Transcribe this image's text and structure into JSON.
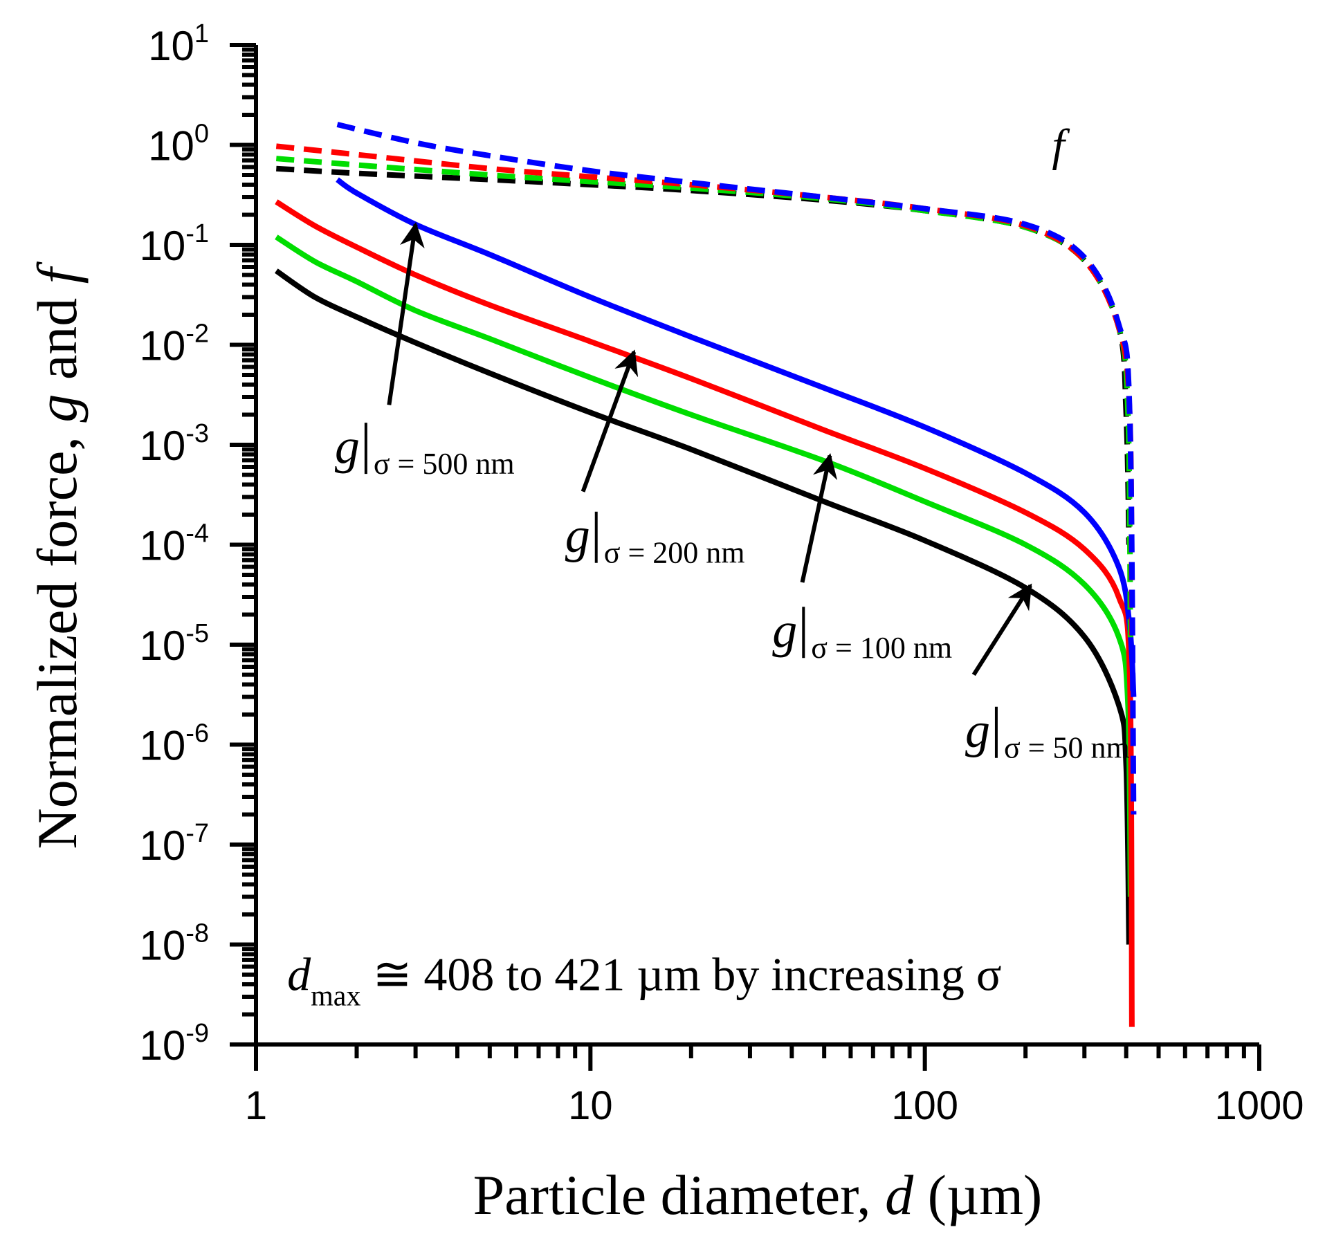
{
  "chart_data": {
    "type": "line",
    "xscale": "log",
    "yscale": "log",
    "xlim": [
      1,
      1000
    ],
    "ylim": [
      1e-09,
      10
    ],
    "xlabel": {
      "prefix": "Particle diameter, ",
      "var": "d",
      "suffix": " (µm)"
    },
    "ylabel": {
      "prefix": "Normalized force, ",
      "var1": "g",
      "mid": " and ",
      "var2": "f"
    },
    "x_ticks": [
      {
        "value": 1,
        "label": "1"
      },
      {
        "value": 10,
        "label": "10"
      },
      {
        "value": 100,
        "label": "100"
      },
      {
        "value": 1000,
        "label": "1000"
      }
    ],
    "y_ticks": [
      {
        "value": 10,
        "base": "10",
        "exp": "1"
      },
      {
        "value": 1,
        "base": "10",
        "exp": "0"
      },
      {
        "value": 0.1,
        "base": "10",
        "exp": "-1"
      },
      {
        "value": 0.01,
        "base": "10",
        "exp": "-2"
      },
      {
        "value": 0.001,
        "base": "10",
        "exp": "-3"
      },
      {
        "value": 0.0001,
        "base": "10",
        "exp": "-4"
      },
      {
        "value": 1e-05,
        "base": "10",
        "exp": "-5"
      },
      {
        "value": 1e-06,
        "base": "10",
        "exp": "-6"
      },
      {
        "value": 1e-07,
        "base": "10",
        "exp": "-7"
      },
      {
        "value": 1e-08,
        "base": "10",
        "exp": "-8"
      },
      {
        "value": 1e-09,
        "base": "10",
        "exp": "-9"
      }
    ],
    "series": [
      {
        "id": "g50",
        "style": "solid",
        "color": "#000000",
        "x": [
          1.15,
          1.5,
          2,
          3,
          5,
          10,
          20,
          50,
          100,
          200,
          300,
          380,
          400,
          408
        ],
        "y": [
          0.055,
          0.03,
          0.019,
          0.0105,
          0.0052,
          0.0021,
          0.0009,
          0.00027,
          0.00011,
          3.7e-05,
          1.2e-05,
          2.5e-06,
          6e-07,
          1e-08
        ]
      },
      {
        "id": "g100",
        "style": "solid",
        "color": "#00dd00",
        "x": [
          1.15,
          1.5,
          2,
          3,
          5,
          10,
          20,
          50,
          100,
          200,
          300,
          380,
          405,
          412
        ],
        "y": [
          0.12,
          0.068,
          0.043,
          0.022,
          0.0115,
          0.0047,
          0.002,
          0.00069,
          0.00027,
          0.0001,
          4e-05,
          1.2e-05,
          2.5e-06,
          3e-08
        ]
      },
      {
        "id": "g200",
        "style": "solid",
        "color": "#ff0000",
        "x": [
          1.15,
          1.5,
          2,
          3,
          5,
          10,
          20,
          50,
          100,
          200,
          300,
          380,
          410,
          416
        ],
        "y": [
          0.27,
          0.155,
          0.095,
          0.05,
          0.025,
          0.0108,
          0.0046,
          0.0014,
          0.00058,
          0.00021,
          9e-05,
          3e-05,
          5e-06,
          1.5e-09
        ]
      },
      {
        "id": "g500",
        "style": "solid",
        "color": "#0000ff",
        "x": [
          1.75,
          2,
          3,
          5,
          10,
          20,
          50,
          100,
          200,
          300,
          380,
          410,
          421
        ],
        "y": [
          0.45,
          0.33,
          0.16,
          0.08,
          0.03,
          0.012,
          0.0037,
          0.0015,
          0.00052,
          0.00021,
          6e-05,
          1.5e-05,
          3e-06
        ]
      },
      {
        "id": "f50",
        "style": "dashed",
        "color": "#000000",
        "x": [
          1.15,
          2,
          5,
          10,
          20,
          50,
          100,
          200,
          300,
          380,
          400,
          408
        ],
        "y": [
          0.58,
          0.52,
          0.45,
          0.4,
          0.35,
          0.28,
          0.22,
          0.15,
          0.07,
          0.015,
          0.002,
          0.0001
        ]
      },
      {
        "id": "f100",
        "style": "dashed",
        "color": "#00dd00",
        "x": [
          1.15,
          2,
          5,
          10,
          20,
          50,
          100,
          200,
          300,
          380,
          405,
          412
        ],
        "y": [
          0.73,
          0.63,
          0.5,
          0.43,
          0.37,
          0.29,
          0.22,
          0.15,
          0.07,
          0.015,
          0.002,
          1e-05
        ]
      },
      {
        "id": "f200",
        "style": "dashed",
        "color": "#ff0000",
        "x": [
          1.15,
          2,
          5,
          10,
          20,
          50,
          100,
          200,
          300,
          380,
          410,
          416
        ],
        "y": [
          0.97,
          0.8,
          0.58,
          0.48,
          0.4,
          0.3,
          0.23,
          0.155,
          0.07,
          0.015,
          0.002,
          1e-05
        ]
      },
      {
        "id": "f500",
        "style": "dashed",
        "color": "#0000ff",
        "x": [
          1.75,
          3,
          5,
          10,
          20,
          50,
          100,
          200,
          300,
          380,
          410,
          421
        ],
        "y": [
          1.6,
          1.05,
          0.78,
          0.55,
          0.42,
          0.3,
          0.23,
          0.16,
          0.075,
          0.016,
          0.002,
          2e-07
        ]
      }
    ],
    "annotations": [
      {
        "id": "g500",
        "var": "g",
        "sub": "σ = 500 nm",
        "label_at": [
          1.72,
          0.00066
        ],
        "arrow_from": [
          2.5,
          0.0025
        ],
        "arrow_to": [
          3.0,
          0.16
        ]
      },
      {
        "id": "g200",
        "var": "g",
        "sub": "σ = 200 nm",
        "label_at": [
          8.4,
          8.5e-05
        ],
        "arrow_from": [
          9.5,
          0.00034
        ],
        "arrow_to": [
          13.5,
          0.0085
        ]
      },
      {
        "id": "g100",
        "var": "g",
        "sub": "σ = 100 nm",
        "label_at": [
          35,
          9.5e-06
        ],
        "arrow_from": [
          43,
          4.2e-05
        ],
        "arrow_to": [
          52,
          0.00078
        ]
      },
      {
        "id": "g50",
        "var": "g",
        "sub": "σ = 50 nm",
        "label_at": [
          132,
          9.5e-07
        ],
        "arrow_from": [
          140,
          5e-06
        ],
        "arrow_to": [
          207,
          3.9e-05
        ]
      }
    ],
    "f_label": {
      "text": "f",
      "at": [
        240,
        0.7
      ]
    },
    "note": {
      "var": "d",
      "sub": "max",
      "rest": " ≅ 408 to 421 µm by increasing σ",
      "at": [
        1.24,
        3.5e-09
      ]
    }
  }
}
